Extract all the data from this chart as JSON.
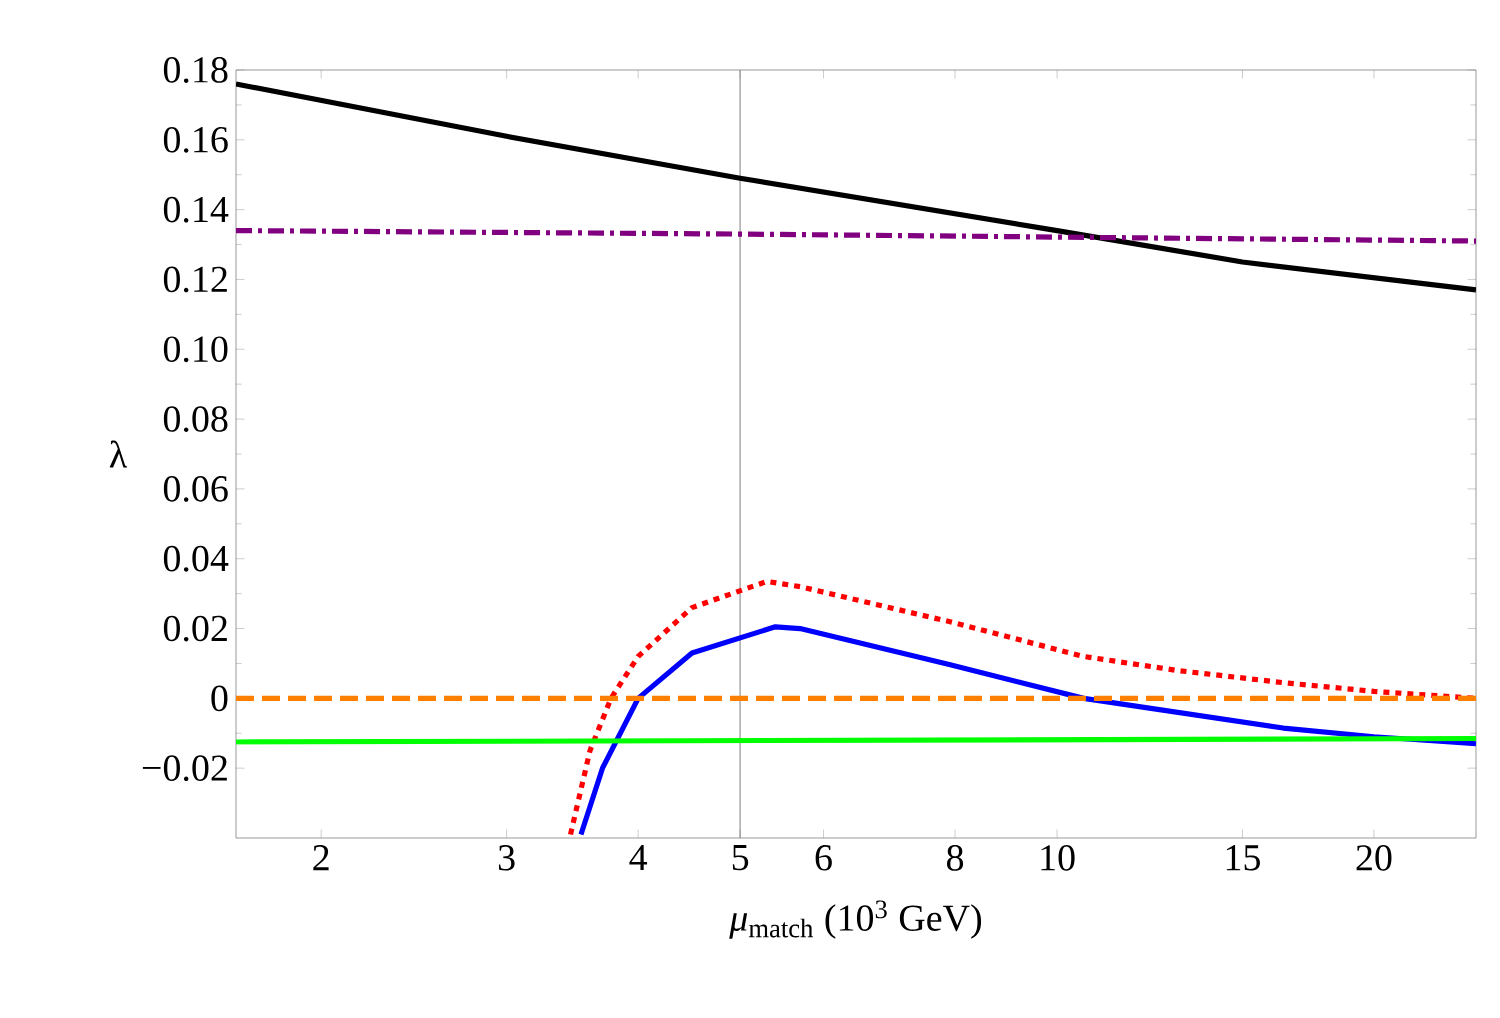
{
  "chart_data": {
    "type": "line",
    "xlabel": "*μ*$_{match}$ (10$^{3}$ GeV)",
    "ylabel": "λ",
    "log": "x",
    "xlim": [
      1.66,
      25
    ],
    "ylim": [
      -0.04,
      0.18
    ],
    "xticks": [
      2,
      3,
      4,
      5,
      6,
      8,
      10,
      15,
      20
    ],
    "yticks": [
      {
        "value": -0.02,
        "label": "−0.02"
      },
      0,
      0.02,
      0.04,
      0.06,
      0.08,
      {
        "value": 0.1,
        "label": "0.10"
      },
      0.12,
      0.14,
      0.16,
      0.18
    ],
    "marker": "none",
    "ref_lines": [
      {
        "axis": "x",
        "value": 5,
        "color": "#808080"
      }
    ],
    "series": [
      {
        "color": "#000000",
        "line_style": "solid",
        "x": [
          1.66,
          3,
          5,
          10,
          15,
          25
        ],
        "values": [
          0.176,
          0.161,
          0.149,
          0.134,
          0.125,
          0.117
        ]
      },
      {
        "color": "#800080",
        "line_style": "dashdot",
        "x": [
          1.66,
          5,
          25
        ],
        "values": [
          0.134,
          0.133,
          0.131
        ]
      },
      {
        "color": "#ff0000",
        "line_style": "dotted",
        "x": [
          3.45,
          3.6,
          3.77,
          4.0,
          4.5,
          5.3,
          5.7,
          7.9,
          10.6,
          13,
          16.4,
          20,
          25
        ],
        "values": [
          -0.039,
          -0.015,
          0,
          0.012,
          0.026,
          0.0335,
          0.032,
          0.022,
          0.012,
          0.008,
          0.0045,
          0.002,
          0
        ]
      },
      {
        "color": "#0000ff",
        "line_style": "solid",
        "x": [
          3.53,
          3.7,
          4.0,
          4.5,
          5.4,
          5.7,
          7.9,
          10.6,
          16.4,
          20,
          25
        ],
        "values": [
          -0.039,
          -0.02,
          0,
          0.013,
          0.0205,
          0.02,
          0.0097,
          0,
          -0.0085,
          -0.011,
          -0.013
        ]
      },
      {
        "color": "#ff8000",
        "line_style": "dashed",
        "x": [
          1.66,
          25
        ],
        "values": [
          0,
          0
        ]
      },
      {
        "color": "#00ff00",
        "line_style": "solid",
        "x": [
          1.66,
          25
        ],
        "values": [
          -0.0125,
          -0.0115
        ]
      }
    ]
  }
}
